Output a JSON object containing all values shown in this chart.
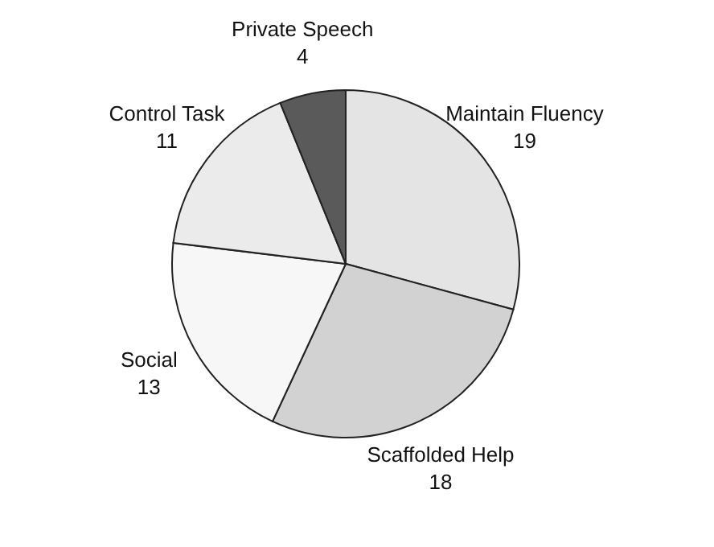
{
  "chart_data": {
    "type": "pie",
    "categories": [
      "Maintain Fluency",
      "Scaffolded Help",
      "Social",
      "Control Task",
      "Private Speech"
    ],
    "values": [
      19,
      18,
      13,
      11,
      4
    ],
    "colors": [
      "#e4e4e4",
      "#d2d2d2",
      "#f7f7f7",
      "#ebebeb",
      "#5a5a5a"
    ],
    "data_labels": true,
    "legend": false
  }
}
